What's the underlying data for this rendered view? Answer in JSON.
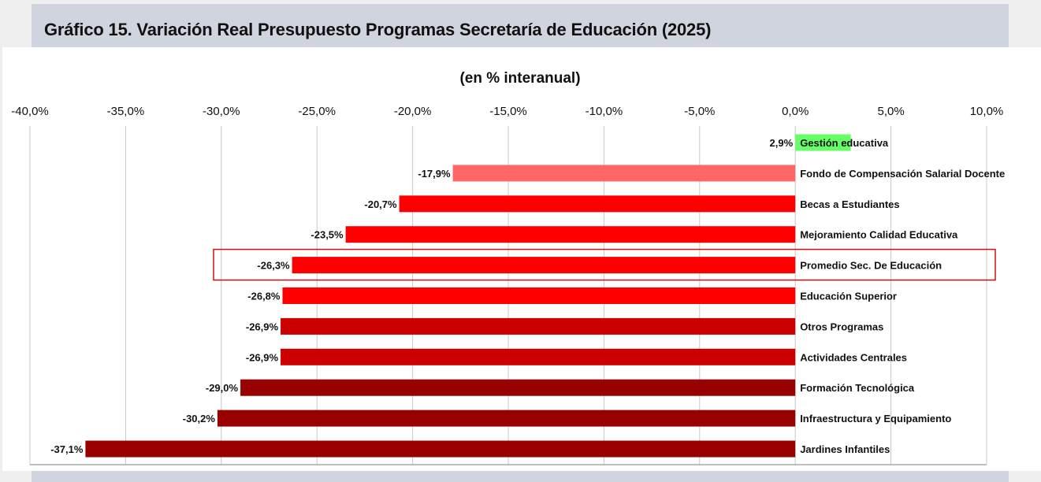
{
  "header": {
    "title": "Gráfico 15. Variación Real Presupuesto Programas Secretaría de Educación (2025)"
  },
  "chart_data": {
    "type": "bar",
    "orientation": "horizontal",
    "subtitle": "(en % interanual)",
    "xlim": [
      -40,
      10
    ],
    "xticks": [
      -40,
      -35,
      -30,
      -25,
      -20,
      -15,
      -10,
      -5,
      0,
      5,
      10
    ],
    "tick_labels": [
      "-40,0%",
      "-35,0%",
      "-30,0%",
      "-25,0%",
      "-20,0%",
      "-15,0%",
      "-10,0%",
      "-5,0%",
      "0,0%",
      "5,0%",
      "10,0%"
    ],
    "grid": true,
    "categories": [
      "Gestión educativa",
      "Fondo de Compensación Salarial Docente",
      "Becas a Estudiantes",
      "Mejoramiento Calidad Educativa",
      "Promedio Sec. De Educación",
      "Educación Superior",
      "Otros Programas",
      "Actividades Centrales",
      "Formación Tecnológica",
      "Infraestructura y Equipamiento",
      "Jardines Infantiles"
    ],
    "values": [
      2.9,
      -17.9,
      -20.7,
      -23.5,
      -26.3,
      -26.8,
      -26.9,
      -26.9,
      -29.0,
      -30.2,
      -37.1
    ],
    "value_labels": [
      "2,9%",
      "-17,9%",
      "-20,7%",
      "-23,5%",
      "-26,3%",
      "-26,8%",
      "-26,9%",
      "-26,9%",
      "-29,0%",
      "-30,2%",
      "-37,1%"
    ],
    "colors": [
      "#66ff66",
      "#ff6666",
      "#ff0000",
      "#ff0000",
      "#ff0000",
      "#ff0000",
      "#cc0000",
      "#cc0000",
      "#990000",
      "#990000",
      "#990000"
    ],
    "highlighted_category": "Promedio Sec. De Educación",
    "highlight_color": "#d01010"
  }
}
